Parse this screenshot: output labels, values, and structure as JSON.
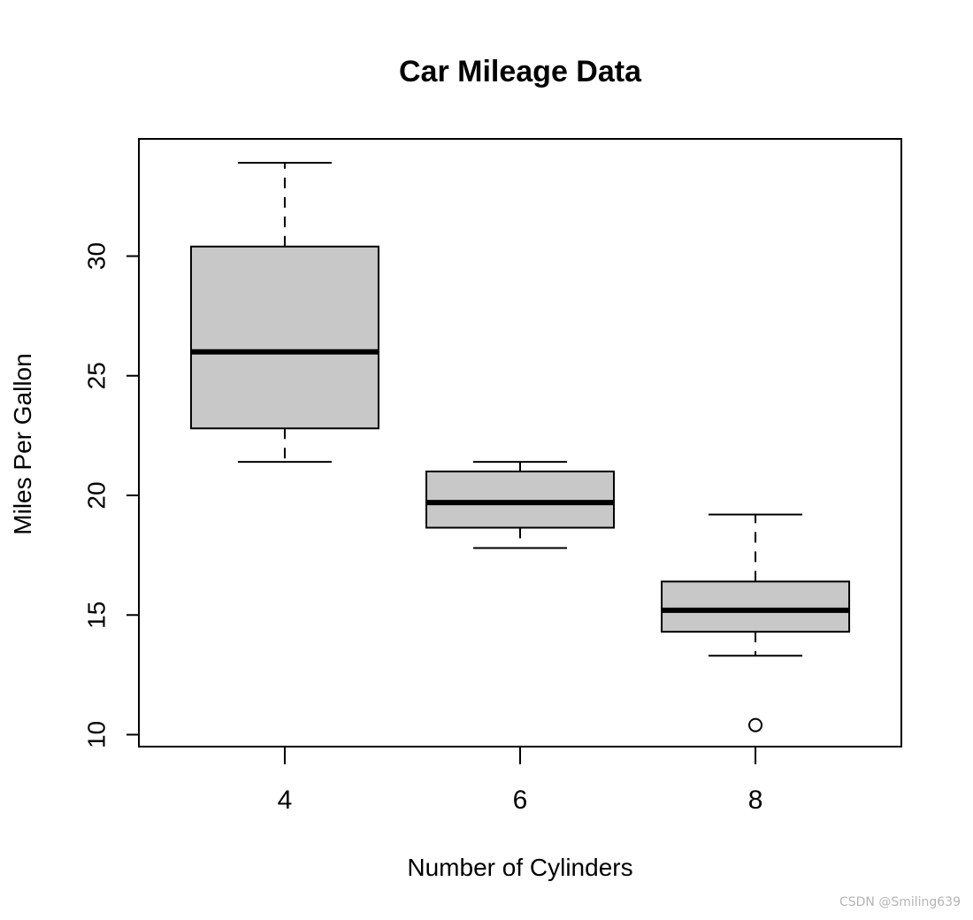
{
  "chart_data": {
    "type": "box",
    "title": "Car Mileage Data",
    "xlabel": "Number of Cylinders",
    "ylabel": "Miles Per Gallon",
    "categories": [
      "4",
      "6",
      "8"
    ],
    "boxes": [
      {
        "category": "4",
        "whisker_low": 21.4,
        "q1": 22.8,
        "median": 26.0,
        "q3": 30.4,
        "whisker_high": 33.9,
        "outliers": []
      },
      {
        "category": "6",
        "whisker_low": 17.8,
        "q1": 18.65,
        "median": 19.7,
        "q3": 21.0,
        "whisker_high": 21.4,
        "outliers": []
      },
      {
        "category": "8",
        "whisker_low": 13.3,
        "q1": 14.3,
        "median": 15.2,
        "q3": 16.4,
        "whisker_high": 19.2,
        "outliers": [
          10.4
        ]
      }
    ],
    "yticks": [
      10,
      15,
      20,
      25,
      30
    ],
    "ylim": [
      9.5,
      34.9
    ],
    "grid": false,
    "legend": "none",
    "box_fill": "#c8c8c8",
    "line_color": "#000000"
  },
  "watermark": "CSDN @Smiling639"
}
